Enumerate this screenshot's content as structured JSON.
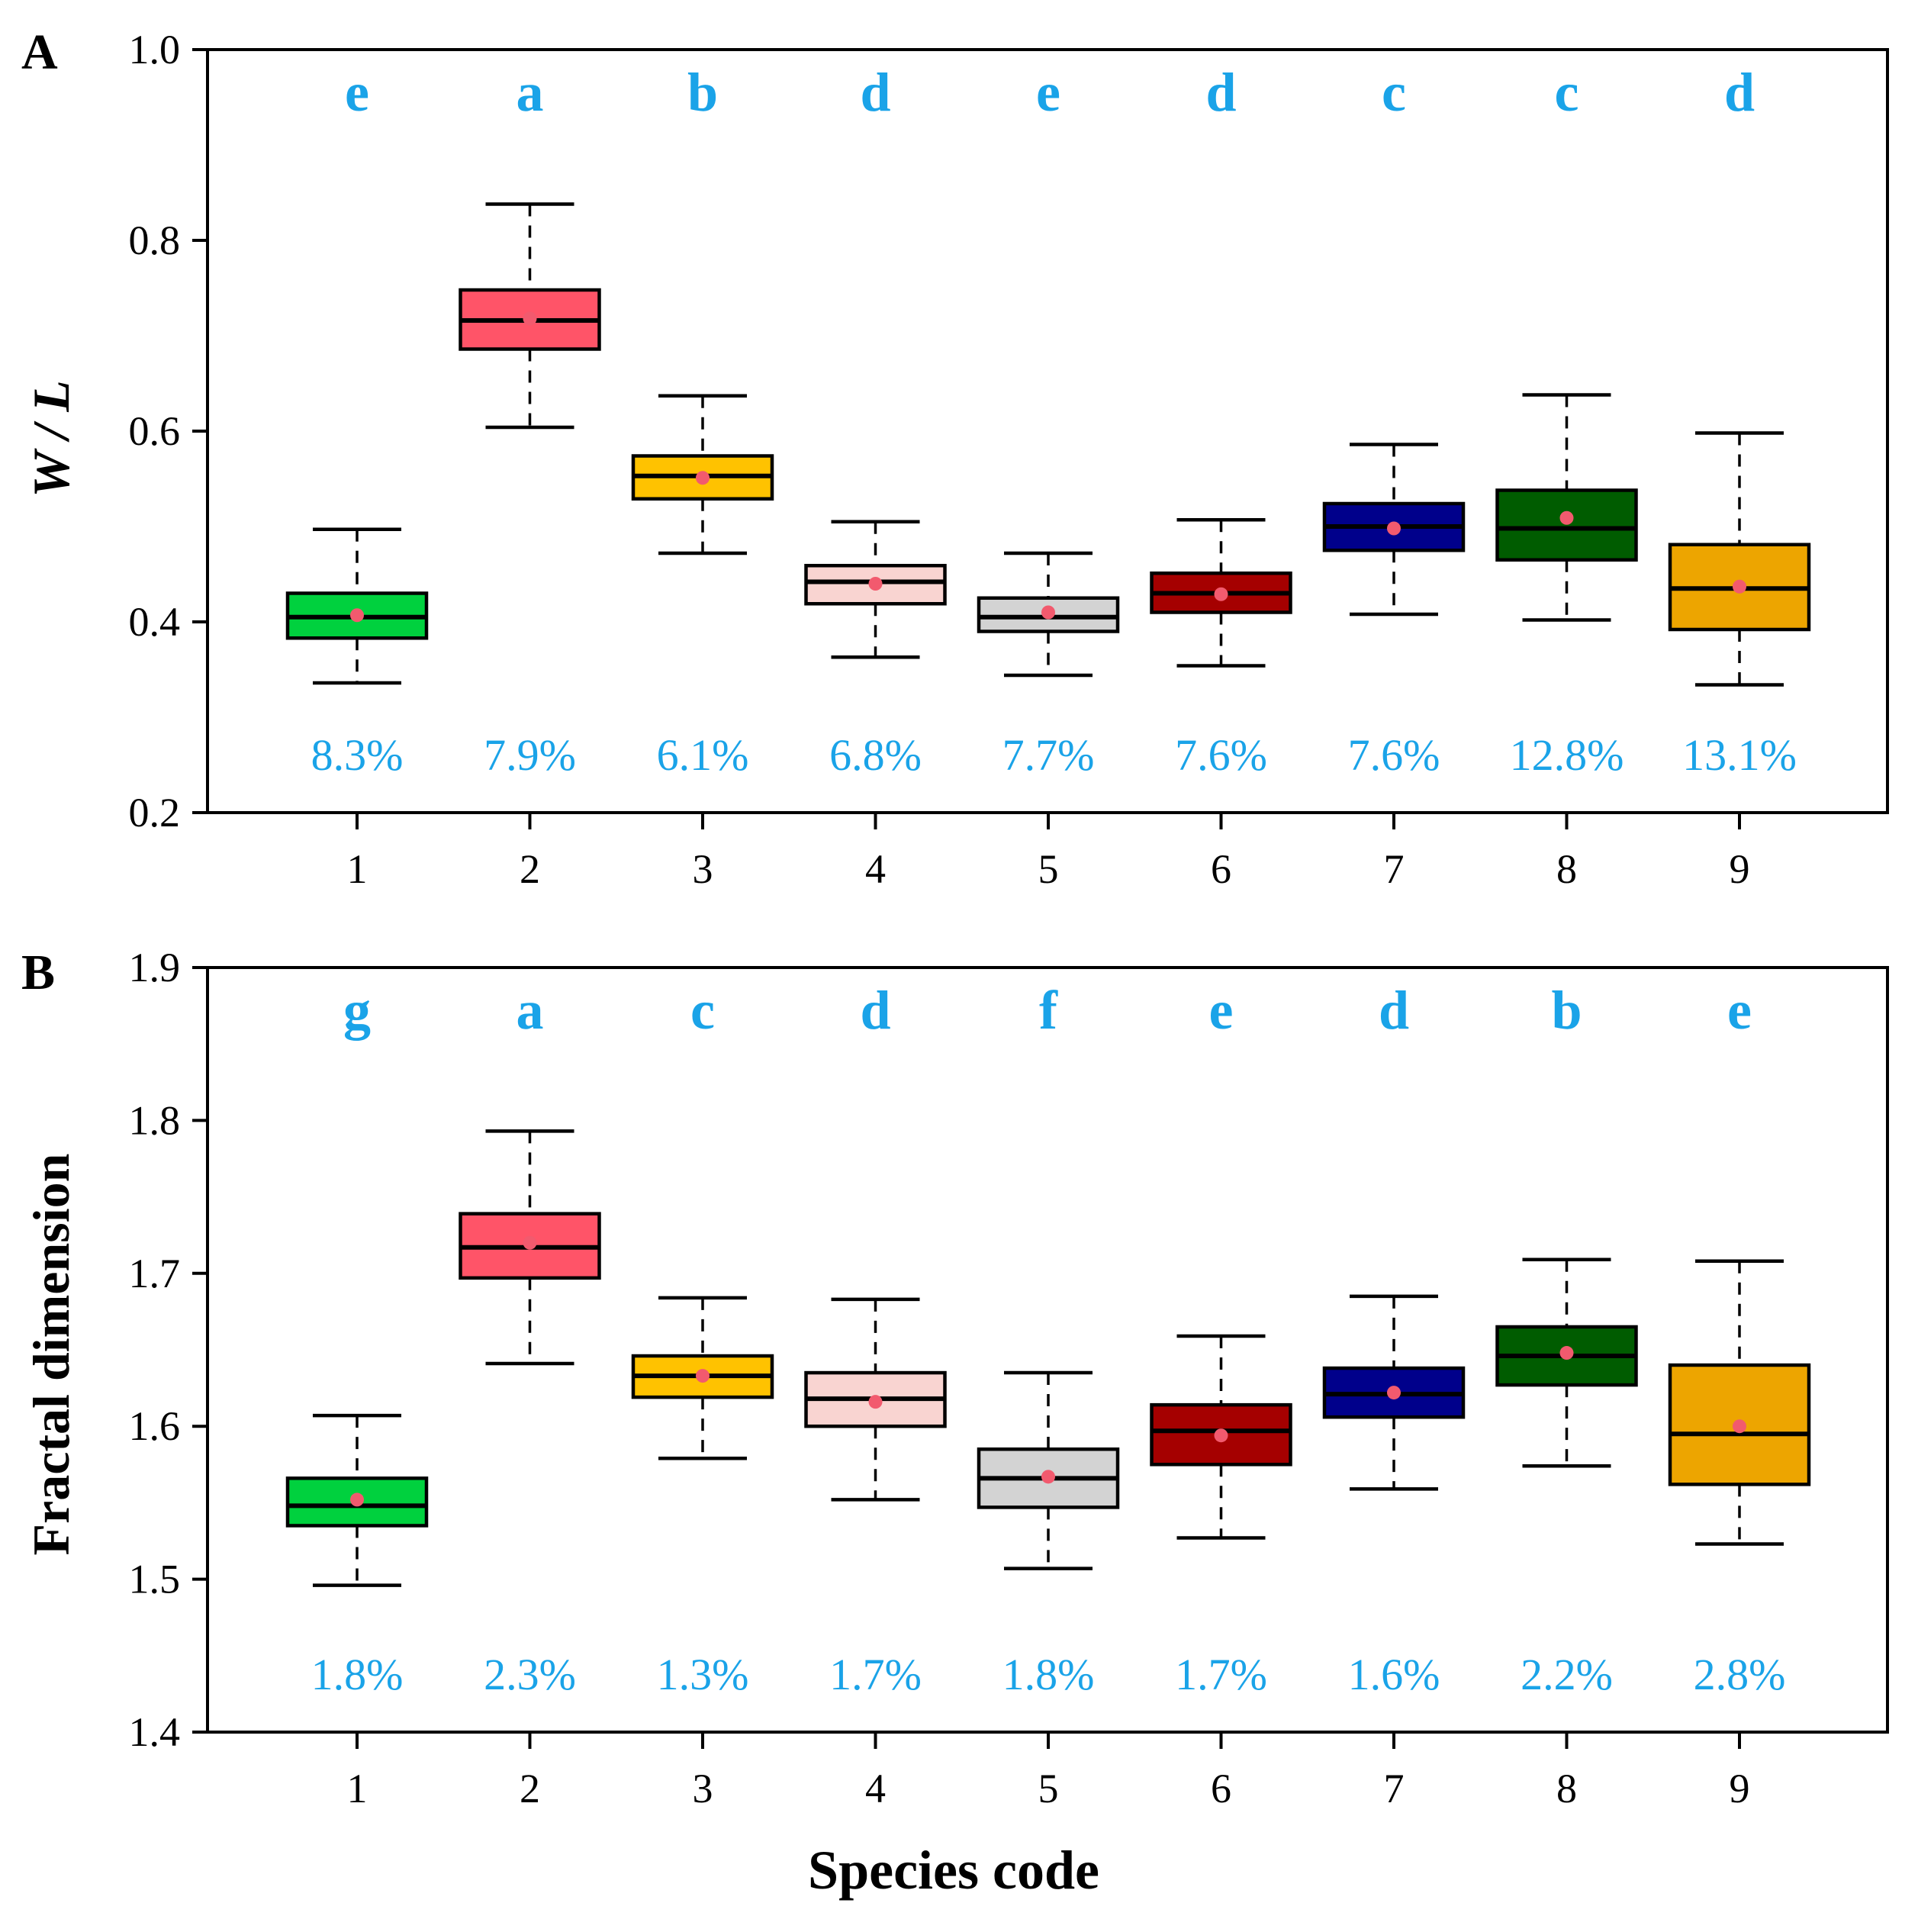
{
  "colors": {
    "annotation": "#1AA3E8",
    "mean_dot": "#F25A6E",
    "boxes": [
      "#00D13E",
      "#FF5468",
      "#FFC200",
      "#F9D4D1",
      "#D3D3D3",
      "#A50000",
      "#00008B",
      "#005C00",
      "#EDA500"
    ]
  },
  "chart_data": [
    {
      "type": "box",
      "panel_label": "A",
      "title": "",
      "xlabel": "",
      "ylabel": "W / L",
      "ylim": [
        0.2,
        1.0
      ],
      "yticks": [
        "0.2",
        "0.4",
        "0.6",
        "0.8",
        "1.0"
      ],
      "categories": [
        "1",
        "2",
        "3",
        "4",
        "5",
        "6",
        "7",
        "8",
        "9"
      ],
      "grid": false,
      "boxes": [
        {
          "min": 0.336,
          "q1": 0.383,
          "median": 0.405,
          "q3": 0.43,
          "max": 0.497,
          "mean": 0.407
        },
        {
          "min": 0.604,
          "q1": 0.686,
          "median": 0.716,
          "q3": 0.748,
          "max": 0.838,
          "mean": 0.718
        },
        {
          "min": 0.472,
          "q1": 0.529,
          "median": 0.553,
          "q3": 0.574,
          "max": 0.637,
          "mean": 0.551
        },
        {
          "min": 0.363,
          "q1": 0.419,
          "median": 0.442,
          "q3": 0.459,
          "max": 0.505,
          "mean": 0.44
        },
        {
          "min": 0.344,
          "q1": 0.39,
          "median": 0.405,
          "q3": 0.425,
          "max": 0.472,
          "mean": 0.41
        },
        {
          "min": 0.354,
          "q1": 0.41,
          "median": 0.43,
          "q3": 0.451,
          "max": 0.507,
          "mean": 0.429
        },
        {
          "min": 0.408,
          "q1": 0.475,
          "median": 0.5,
          "q3": 0.524,
          "max": 0.586,
          "mean": 0.498
        },
        {
          "min": 0.402,
          "q1": 0.465,
          "median": 0.498,
          "q3": 0.538,
          "max": 0.638,
          "mean": 0.509
        },
        {
          "min": 0.334,
          "q1": 0.392,
          "median": 0.435,
          "q3": 0.481,
          "max": 0.598,
          "mean": 0.437
        }
      ],
      "group_letters": [
        "e",
        "a",
        "b",
        "d",
        "e",
        "d",
        "c",
        "c",
        "d"
      ],
      "cv_labels": [
        "8.3%",
        "7.9%",
        "6.1%",
        "6.8%",
        "7.7%",
        "7.6%",
        "7.6%",
        "12.8%",
        "13.1%"
      ]
    },
    {
      "type": "box",
      "panel_label": "B",
      "title": "",
      "xlabel": "Species code",
      "ylabel": "Fractal dimension",
      "ylim": [
        1.4,
        1.9
      ],
      "yticks": [
        "1.4",
        "1.5",
        "1.6",
        "1.7",
        "1.8",
        "1.9"
      ],
      "categories": [
        "1",
        "2",
        "3",
        "4",
        "5",
        "6",
        "7",
        "8",
        "9"
      ],
      "grid": false,
      "boxes": [
        {
          "min": 1.496,
          "q1": 1.535,
          "median": 1.548,
          "q3": 1.566,
          "max": 1.607,
          "mean": 1.552
        },
        {
          "min": 1.641,
          "q1": 1.697,
          "median": 1.717,
          "q3": 1.739,
          "max": 1.793,
          "mean": 1.72
        },
        {
          "min": 1.579,
          "q1": 1.619,
          "median": 1.633,
          "q3": 1.646,
          "max": 1.684,
          "mean": 1.633
        },
        {
          "min": 1.552,
          "q1": 1.6,
          "median": 1.618,
          "q3": 1.635,
          "max": 1.683,
          "mean": 1.616
        },
        {
          "min": 1.507,
          "q1": 1.547,
          "median": 1.566,
          "q3": 1.585,
          "max": 1.635,
          "mean": 1.567
        },
        {
          "min": 1.527,
          "q1": 1.575,
          "median": 1.597,
          "q3": 1.614,
          "max": 1.659,
          "mean": 1.594
        },
        {
          "min": 1.559,
          "q1": 1.606,
          "median": 1.621,
          "q3": 1.638,
          "max": 1.685,
          "mean": 1.622
        },
        {
          "min": 1.574,
          "q1": 1.627,
          "median": 1.646,
          "q3": 1.665,
          "max": 1.709,
          "mean": 1.648
        },
        {
          "min": 1.523,
          "q1": 1.562,
          "median": 1.595,
          "q3": 1.64,
          "max": 1.708,
          "mean": 1.6
        }
      ],
      "group_letters": [
        "g",
        "a",
        "c",
        "d",
        "f",
        "e",
        "d",
        "b",
        "e"
      ],
      "cv_labels": [
        "1.8%",
        "2.3%",
        "1.3%",
        "1.7%",
        "1.8%",
        "1.7%",
        "1.6%",
        "2.2%",
        "2.8%"
      ]
    }
  ]
}
